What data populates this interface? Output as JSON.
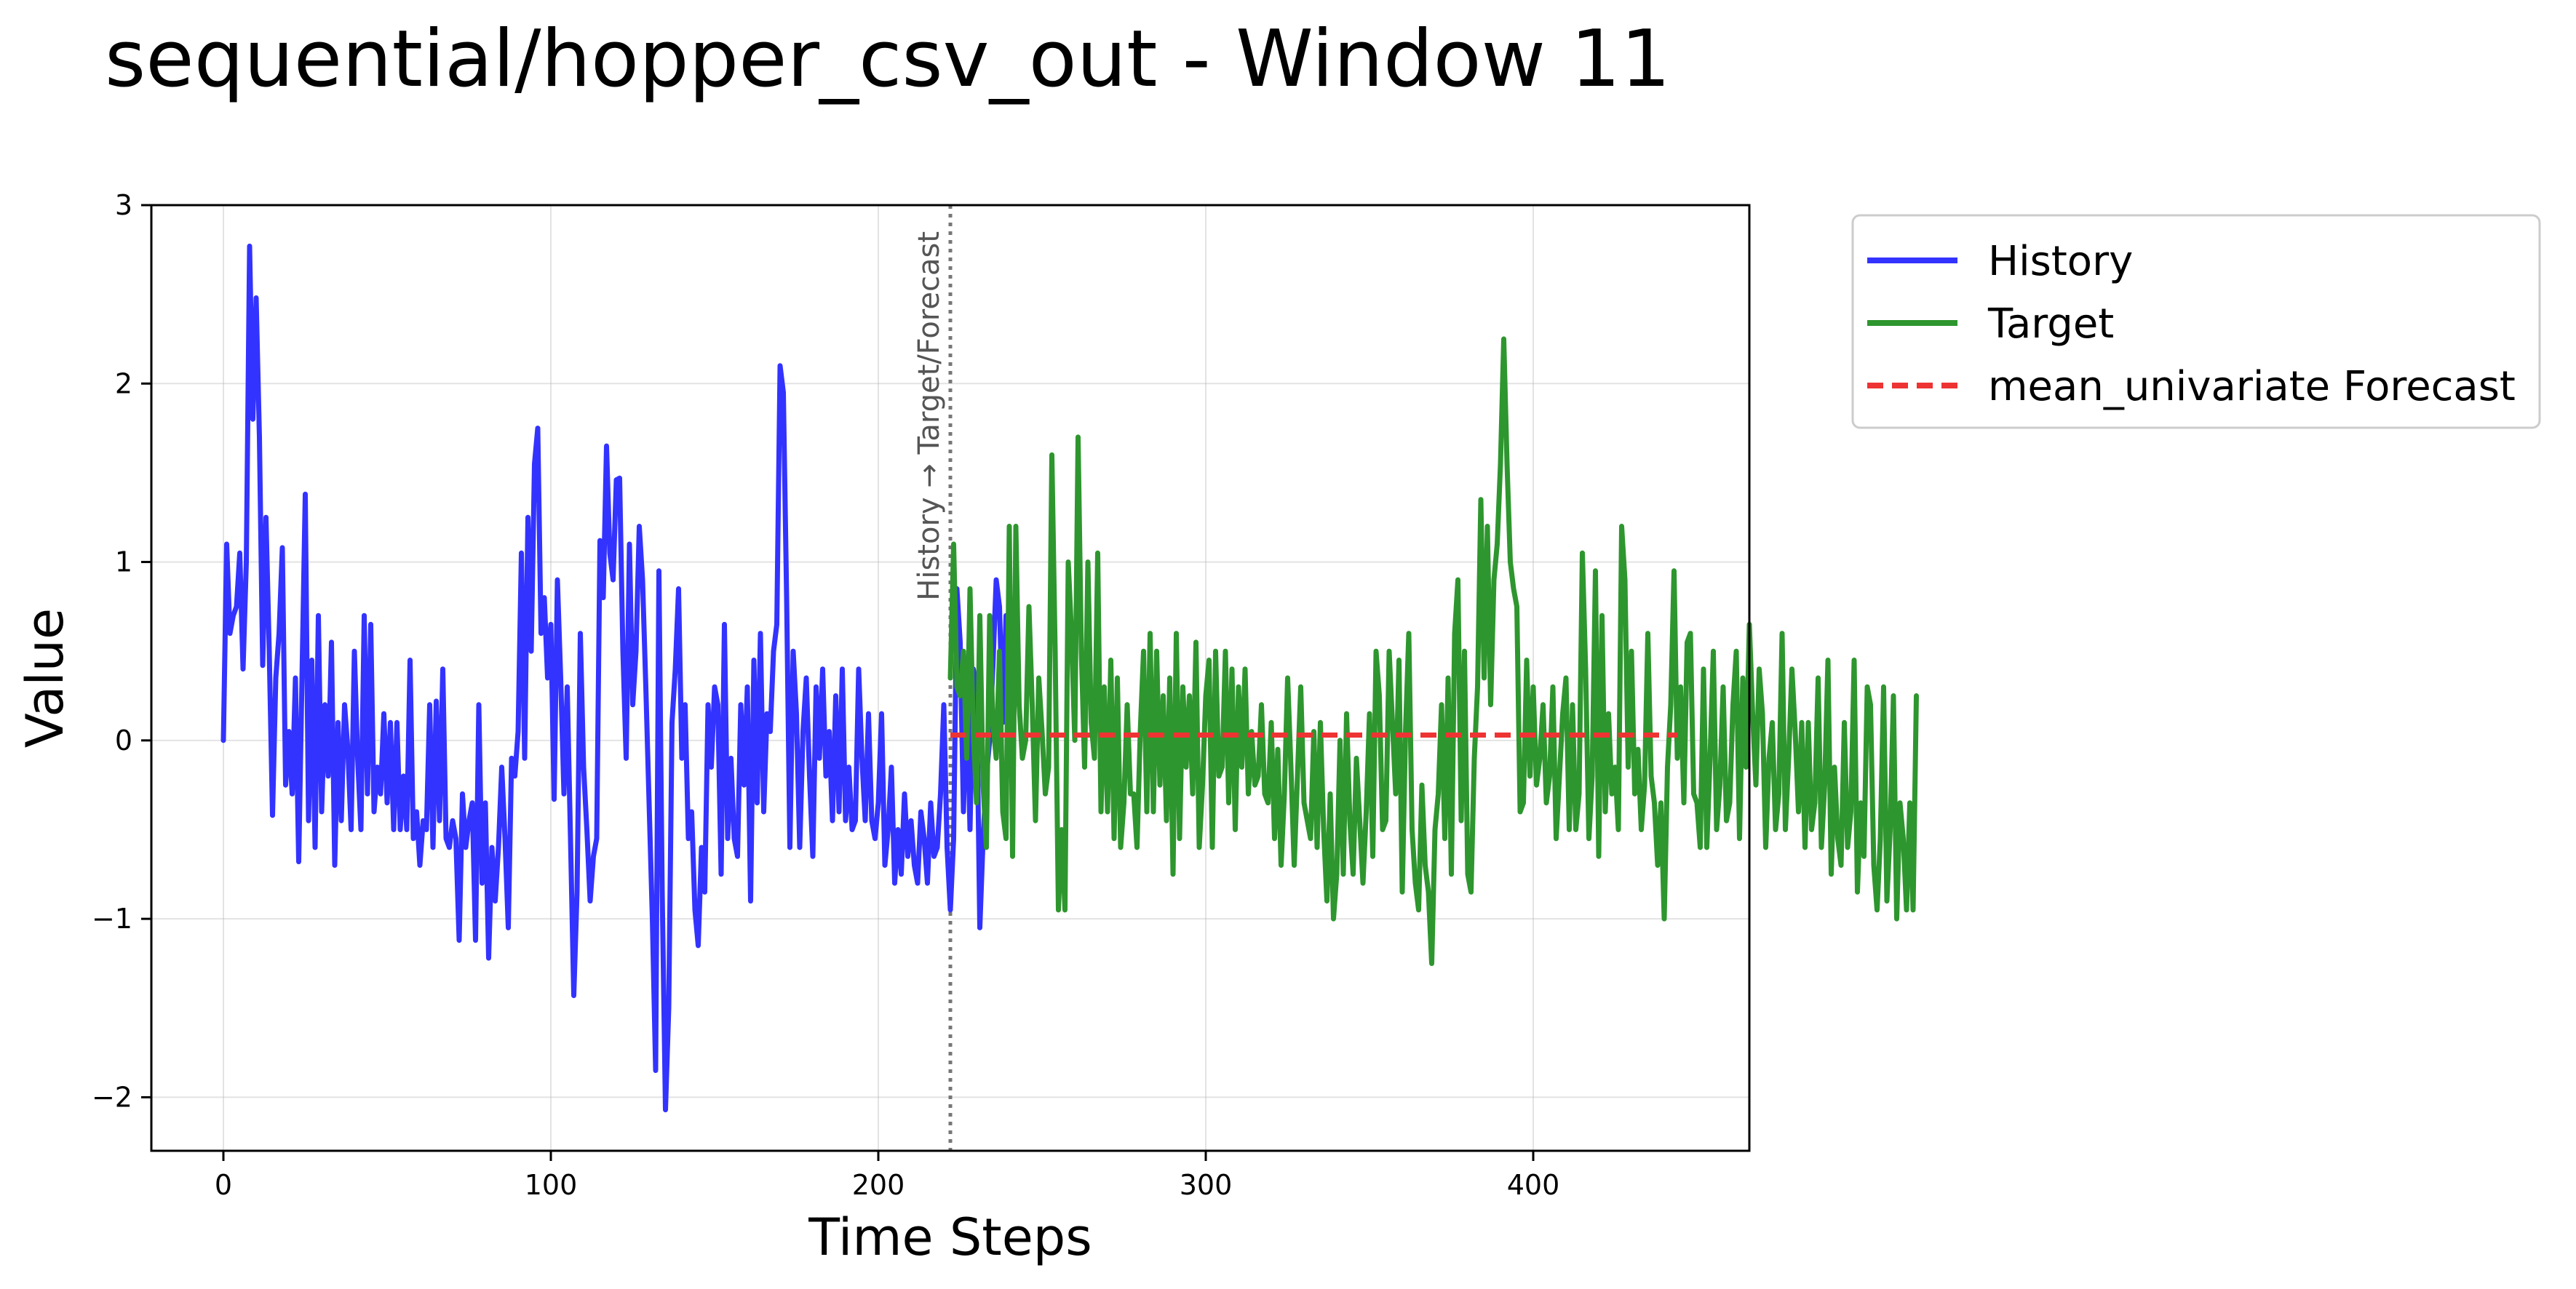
{
  "chart_data": {
    "type": "line",
    "title": "sequential/hopper_csv_out - Window 11",
    "xlabel": "Time Steps",
    "ylabel": "Value",
    "xlim": [
      -22,
      466
    ],
    "ylim": [
      -2.3,
      3.0
    ],
    "grid": true,
    "legend_position": "outside-top-right",
    "x_ticks": [
      0,
      100,
      200,
      300,
      400
    ],
    "y_ticks": [
      -2,
      -1,
      0,
      1,
      2,
      3
    ],
    "x_tick_labels": [
      "0",
      "100",
      "200",
      "300",
      "400"
    ],
    "y_tick_labels": [
      "−2",
      "−1",
      "0",
      "1",
      "2",
      "3"
    ],
    "divider": {
      "x": 222,
      "label": "History → Target/Forecast",
      "color": "#777777"
    },
    "series": [
      {
        "name": "History",
        "color": "#3333ff",
        "line_style": "solid",
        "x_start": 0,
        "values": [
          0.0,
          1.1,
          0.6,
          0.7,
          0.75,
          1.05,
          0.4,
          1.0,
          2.77,
          1.8,
          2.48,
          1.7,
          0.42,
          1.25,
          0.5,
          -0.42,
          0.35,
          0.6,
          1.08,
          -0.25,
          0.05,
          -0.3,
          0.35,
          -0.68,
          0.35,
          1.38,
          -0.45,
          0.45,
          -0.6,
          0.7,
          -0.4,
          0.2,
          -0.2,
          0.55,
          -0.7,
          0.1,
          -0.45,
          0.2,
          -0.05,
          -0.5,
          0.5,
          -0.1,
          -0.5,
          0.7,
          -0.3,
          0.65,
          -0.4,
          -0.15,
          -0.3,
          0.15,
          -0.35,
          0.1,
          -0.5,
          0.1,
          -0.5,
          -0.2,
          -0.5,
          0.45,
          -0.55,
          -0.4,
          -0.7,
          -0.45,
          -0.5,
          0.2,
          -0.6,
          0.22,
          -0.45,
          0.4,
          -0.55,
          -0.6,
          -0.45,
          -0.55,
          -1.12,
          -0.3,
          -0.6,
          -0.45,
          -0.35,
          -1.12,
          0.2,
          -0.8,
          -0.35,
          -1.22,
          -0.6,
          -0.9,
          -0.6,
          -0.15,
          -0.55,
          -1.05,
          -0.1,
          -0.2,
          0.05,
          1.05,
          -0.1,
          1.25,
          0.5,
          1.55,
          1.75,
          0.6,
          0.8,
          0.35,
          0.65,
          -0.33,
          0.9,
          0.35,
          -0.3,
          0.3,
          -0.55,
          -1.43,
          -0.85,
          0.6,
          -0.15,
          -0.5,
          -0.9,
          -0.65,
          -0.55,
          1.12,
          0.8,
          1.65,
          1.05,
          0.9,
          1.46,
          1.47,
          0.5,
          -0.1,
          1.1,
          0.2,
          0.5,
          1.2,
          0.9,
          0.3,
          -0.35,
          -1.0,
          -1.85,
          0.95,
          -0.85,
          -2.07,
          -1.5,
          0.1,
          0.4,
          0.85,
          -0.1,
          0.2,
          -0.55,
          -0.4,
          -0.95,
          -1.15,
          -0.6,
          -0.85,
          0.2,
          -0.15,
          0.3,
          0.2,
          -0.75,
          0.65,
          -0.55,
          -0.1,
          -0.55,
          -0.65,
          0.2,
          -0.25,
          0.3,
          -0.9,
          0.45,
          -0.35,
          0.6,
          -0.4,
          0.15,
          0.05,
          0.5,
          0.65,
          2.1,
          1.95,
          0.8,
          -0.6,
          0.5,
          0.15,
          -0.6,
          0.05,
          0.35,
          -0.2,
          -0.65,
          0.3,
          -0.1,
          0.4,
          -0.2,
          0.05,
          -0.45,
          0.25,
          -0.4,
          0.4,
          -0.45,
          -0.15,
          -0.5,
          -0.45,
          0.4,
          -0.1,
          -0.45,
          0.15,
          -0.45,
          -0.55,
          -0.35,
          0.15,
          -0.7,
          -0.5,
          -0.15,
          -0.8,
          -0.5,
          -0.75,
          -0.3,
          -0.65,
          -0.45,
          -0.7,
          -0.8,
          -0.4,
          -0.55,
          -0.8,
          -0.35,
          -0.65,
          -0.6,
          -0.3,
          0.2,
          -0.6,
          -0.95,
          -0.55,
          0.85,
          0.55,
          -0.4,
          0.3,
          -0.5,
          0.4,
          0.3,
          -1.05,
          -0.55,
          -0.2,
          0.0,
          0.42,
          0.9,
          0.75,
          0.1,
          0.7
        ]
      },
      {
        "name": "Target",
        "color": "#2e962e",
        "line_style": "solid",
        "x_start": 222,
        "values": [
          0.35,
          1.1,
          0.3,
          0.25,
          0.5,
          -0.1,
          0.85,
          0.05,
          -0.35,
          0.7,
          -0.25,
          -0.6,
          0.7,
          0.1,
          -0.1,
          0.5,
          -0.4,
          -0.55,
          1.2,
          -0.65,
          1.2,
          0.2,
          -0.1,
          0.0,
          0.75,
          0.2,
          -0.45,
          0.35,
          0.05,
          -0.3,
          -0.15,
          1.6,
          0.5,
          -0.95,
          -0.5,
          -0.95,
          1.0,
          0.6,
          0.0,
          1.7,
          0.5,
          -0.15,
          1.0,
          0.1,
          -0.1,
          1.05,
          -0.4,
          0.3,
          -0.4,
          0.45,
          -0.55,
          0.35,
          -0.6,
          -0.35,
          0.2,
          -0.3,
          -0.3,
          -0.6,
          0.05,
          0.5,
          -0.4,
          0.6,
          -0.4,
          0.5,
          -0.25,
          0.25,
          -0.45,
          0.35,
          -0.75,
          0.6,
          -0.55,
          0.3,
          -0.15,
          0.25,
          -0.3,
          0.55,
          -0.6,
          -0.25,
          0.25,
          0.45,
          -0.6,
          0.5,
          -0.2,
          -0.15,
          0.5,
          -0.35,
          0.4,
          -0.5,
          0.3,
          -0.15,
          0.4,
          -0.3,
          0.05,
          -0.25,
          -0.2,
          0.2,
          -0.3,
          -0.35,
          0.1,
          -0.55,
          -0.05,
          -0.7,
          -0.3,
          0.35,
          -0.15,
          -0.7,
          -0.2,
          0.3,
          -0.35,
          -0.45,
          -0.55,
          0.05,
          -0.6,
          0.1,
          -0.5,
          -0.9,
          -0.3,
          -1.0,
          -0.75,
          0.0,
          -0.75,
          0.15,
          -0.45,
          -0.75,
          -0.1,
          -0.45,
          -0.8,
          -0.4,
          0.15,
          -0.65,
          0.5,
          0.25,
          -0.5,
          -0.45,
          0.5,
          0.1,
          -0.3,
          0.45,
          -0.85,
          0.05,
          0.6,
          -0.5,
          -0.8,
          -0.95,
          -0.25,
          -0.7,
          -0.85,
          -1.25,
          -0.5,
          -0.3,
          0.2,
          -0.55,
          0.35,
          -0.75,
          0.6,
          0.9,
          -0.45,
          0.5,
          -0.75,
          -0.85,
          -0.1,
          0.3,
          1.35,
          0.35,
          1.2,
          0.2,
          0.9,
          1.1,
          1.55,
          2.25,
          1.55,
          1.0,
          0.85,
          0.75,
          -0.4,
          -0.35,
          0.45,
          -0.2,
          0.3,
          -0.25,
          -0.1,
          0.2,
          -0.35,
          -0.2,
          0.3,
          -0.55,
          -0.2,
          0.15,
          0.35,
          -0.5,
          0.2,
          -0.5,
          -0.3,
          1.05,
          0.4,
          -0.55,
          -0.2,
          0.95,
          -0.65,
          0.7,
          -0.4,
          0.15,
          -0.3,
          -0.15,
          -0.5,
          1.2,
          0.9,
          -0.15,
          0.5,
          -0.3,
          -0.05,
          -0.5,
          -0.25,
          0.6,
          -0.2,
          -0.35,
          -0.7,
          -0.35,
          -1.0,
          -0.15,
          0.2,
          0.95,
          -0.1,
          0.3,
          -0.35,
          0.55,
          0.6,
          -0.3,
          -0.35,
          -0.6,
          0.4,
          -0.6,
          -0.1,
          0.5,
          -0.5,
          -0.25,
          0.3,
          -0.45,
          -0.35,
          0.2,
          0.5,
          -0.55,
          0.35,
          -0.15,
          0.65,
          0.15,
          -0.25,
          0.4,
          0.15,
          -0.6,
          -0.1,
          0.1,
          -0.5,
          -0.3,
          0.6,
          -0.5,
          -0.1,
          0.4,
          0.05,
          -0.4,
          0.1,
          -0.6,
          0.1,
          -0.5,
          -0.35,
          0.35,
          -0.6,
          -0.25,
          0.45,
          -0.75,
          -0.15,
          -0.55,
          -0.7,
          0.1,
          -0.6,
          -0.4,
          0.45,
          -0.85,
          -0.35,
          -0.65,
          0.3,
          0.2,
          -0.7,
          -0.95,
          -0.55,
          0.3,
          -0.9,
          -0.5,
          0.25,
          -1.0,
          -0.35,
          -0.55,
          -0.95,
          -0.35,
          -0.95,
          0.25
        ]
      },
      {
        "name": "mean_univariate Forecast",
        "color": "#ee3333",
        "line_style": "dashed",
        "x_start": 222,
        "x_end": 444,
        "constant": 0.03
      }
    ]
  }
}
